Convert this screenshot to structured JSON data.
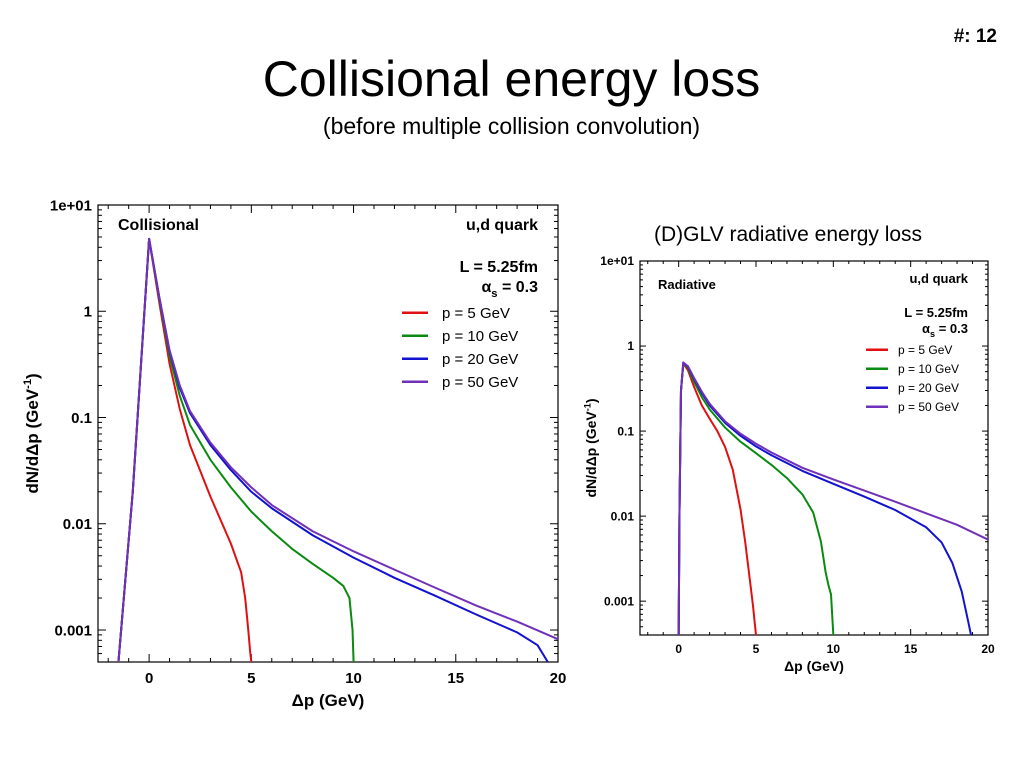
{
  "slide": {
    "number": "#: 12",
    "title": "Collisional energy loss",
    "subtitle": "(before multiple collision convolution)",
    "right_heading": "(D)GLV radiative energy loss"
  },
  "colors": {
    "p5": "#e01010",
    "p10": "#0a8a10",
    "p20": "#1212d0",
    "p50": "#7030b8"
  },
  "chart_data": [
    {
      "type": "line",
      "panel_label": "Collisional",
      "info": [
        "u,d quark",
        "L = 5.25fm",
        "= 0.3"
      ],
      "alpha_symbol": "α",
      "alpha_sub": "s",
      "xlabel": "Δp (GeV)",
      "ylabel": "dN/dΔp (GeV⁻¹)",
      "ylabel_main": "dN/dΔp (GeV",
      "ylabel_sup": "-1",
      "ylabel_end": ")",
      "xlim": [
        -2.5,
        20
      ],
      "ylim": [
        0.0005,
        10
      ],
      "yscale": "log",
      "xticks": [
        0,
        5,
        10,
        15,
        20
      ],
      "yticks": [
        {
          "value": 10,
          "label": "1e+01"
        },
        {
          "value": 1,
          "label": "1"
        },
        {
          "value": 0.1,
          "label": "0.1"
        },
        {
          "value": 0.01,
          "label": "0.01"
        },
        {
          "value": 0.001,
          "label": "0.001"
        }
      ],
      "series": [
        {
          "name": "p = 5 GeV",
          "color_key": "p5",
          "x": [
            -1.5,
            -0.8,
            0,
            0.5,
            1,
            1.5,
            2,
            3,
            4,
            4.5,
            4.7,
            4.85,
            4.95,
            5.0
          ],
          "y": [
            0.0005,
            0.02,
            4.8,
            1.2,
            0.32,
            0.12,
            0.055,
            0.018,
            0.0065,
            0.0035,
            0.002,
            0.001,
            0.0006,
            0.0005
          ]
        },
        {
          "name": "p = 10 GeV",
          "color_key": "p10",
          "x": [
            -1.5,
            -0.8,
            0,
            0.5,
            1,
            1.5,
            2,
            3,
            4,
            5,
            6,
            7,
            8,
            9,
            9.5,
            9.8,
            9.95,
            10.0
          ],
          "y": [
            0.0005,
            0.02,
            4.8,
            1.3,
            0.38,
            0.16,
            0.085,
            0.04,
            0.022,
            0.013,
            0.0085,
            0.0058,
            0.0042,
            0.0031,
            0.0026,
            0.002,
            0.001,
            0.0005
          ]
        },
        {
          "name": "p = 20 GeV",
          "color_key": "p20",
          "x": [
            -1.5,
            -0.8,
            0,
            0.5,
            1,
            1.5,
            2,
            3,
            4,
            5,
            6,
            8,
            10,
            12,
            14,
            16,
            18,
            19,
            19.5
          ],
          "y": [
            0.0005,
            0.02,
            4.8,
            1.35,
            0.42,
            0.19,
            0.11,
            0.055,
            0.032,
            0.02,
            0.014,
            0.0078,
            0.0048,
            0.0031,
            0.0021,
            0.0014,
            0.00095,
            0.00072,
            0.0005
          ]
        },
        {
          "name": "p = 50 GeV",
          "color_key": "p50",
          "x": [
            -1.5,
            -0.8,
            0,
            0.5,
            1,
            1.5,
            2,
            3,
            4,
            5,
            6,
            8,
            10,
            12,
            14,
            16,
            18,
            20
          ],
          "y": [
            0.0005,
            0.02,
            4.8,
            1.35,
            0.43,
            0.2,
            0.115,
            0.058,
            0.034,
            0.022,
            0.015,
            0.0085,
            0.0055,
            0.0037,
            0.0025,
            0.0017,
            0.0012,
            0.00082
          ]
        }
      ]
    },
    {
      "type": "line",
      "panel_label": "Radiative",
      "info": [
        "u,d quark",
        "L = 5.25fm",
        "= 0.3"
      ],
      "alpha_symbol": "α",
      "alpha_sub": "s",
      "xlabel": "Δp (GeV)",
      "ylabel": "dN/dΔp (GeV⁻¹)",
      "ylabel_main": "dN/dΔp (GeV",
      "ylabel_sup": "-1",
      "ylabel_end": ")",
      "xlim": [
        -2.5,
        20
      ],
      "ylim": [
        0.0004,
        10
      ],
      "yscale": "log",
      "xticks": [
        0,
        5,
        10,
        15,
        20
      ],
      "yticks": [
        {
          "value": 10,
          "label": "1e+01"
        },
        {
          "value": 1,
          "label": "1"
        },
        {
          "value": 0.1,
          "label": "0.1"
        },
        {
          "value": 0.01,
          "label": "0.01"
        },
        {
          "value": 0.001,
          "label": "0.001"
        }
      ],
      "series": [
        {
          "name": "p = 5 GeV",
          "color_key": "p5",
          "x": [
            0.0,
            0.05,
            0.15,
            0.3,
            0.6,
            1,
            1.5,
            2,
            2.5,
            3,
            3.5,
            4,
            4.3,
            4.6,
            4.8,
            4.9,
            5.0
          ],
          "y": [
            0.0004,
            0.01,
            0.3,
            0.62,
            0.52,
            0.33,
            0.2,
            0.14,
            0.1,
            0.065,
            0.035,
            0.012,
            0.005,
            0.0018,
            0.0009,
            0.0006,
            0.0004
          ]
        },
        {
          "name": "p = 10 GeV",
          "color_key": "p10",
          "x": [
            0.0,
            0.05,
            0.15,
            0.3,
            0.6,
            1,
            1.5,
            2,
            3,
            4,
            5,
            6,
            7,
            8,
            8.7,
            9.2,
            9.5,
            9.7,
            9.85,
            10.0
          ],
          "y": [
            0.0004,
            0.01,
            0.3,
            0.63,
            0.55,
            0.38,
            0.25,
            0.18,
            0.11,
            0.075,
            0.055,
            0.04,
            0.028,
            0.018,
            0.011,
            0.005,
            0.0022,
            0.0015,
            0.0012,
            0.0004
          ]
        },
        {
          "name": "p = 20 GeV",
          "color_key": "p20",
          "x": [
            0.0,
            0.05,
            0.15,
            0.3,
            0.6,
            1,
            1.5,
            2,
            3,
            4,
            5,
            6,
            8,
            10,
            12,
            14,
            16,
            17,
            17.7,
            18.3,
            18.7,
            18.9
          ],
          "y": [
            0.0004,
            0.01,
            0.3,
            0.64,
            0.57,
            0.41,
            0.28,
            0.2,
            0.125,
            0.088,
            0.066,
            0.052,
            0.034,
            0.024,
            0.017,
            0.0118,
            0.0074,
            0.0049,
            0.0028,
            0.0013,
            0.0006,
            0.0004
          ]
        },
        {
          "name": "p = 50 GeV",
          "color_key": "p50",
          "x": [
            0.0,
            0.05,
            0.15,
            0.3,
            0.6,
            1,
            1.5,
            2,
            3,
            4,
            5,
            6,
            8,
            10,
            12,
            14,
            16,
            18,
            20
          ],
          "y": [
            0.0004,
            0.01,
            0.3,
            0.64,
            0.58,
            0.42,
            0.29,
            0.21,
            0.13,
            0.093,
            0.071,
            0.056,
            0.037,
            0.027,
            0.02,
            0.0148,
            0.0108,
            0.0079,
            0.0053
          ]
        }
      ]
    }
  ]
}
